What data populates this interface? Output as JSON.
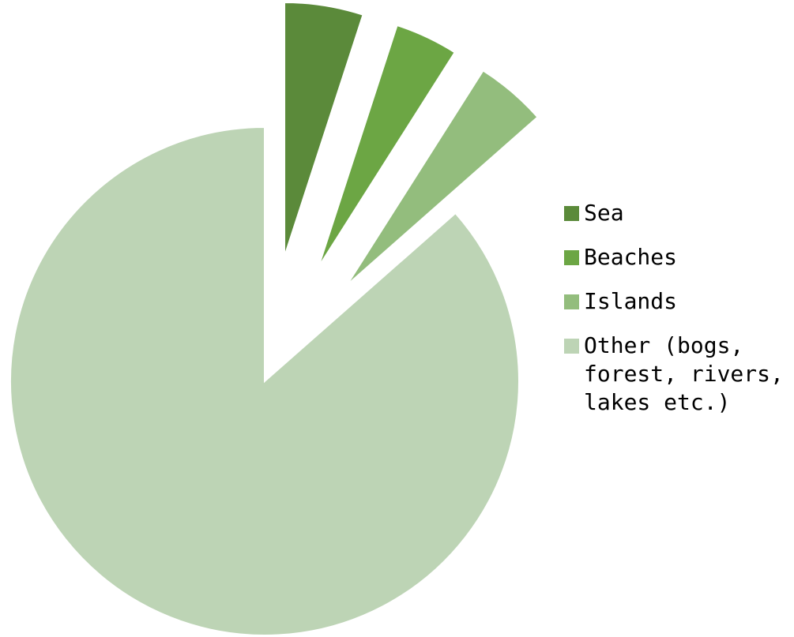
{
  "chart_data": {
    "type": "pie",
    "title": "",
    "slices": [
      {
        "label": "Sea",
        "value": 5,
        "color": "#5b8a3a",
        "exploded": true
      },
      {
        "label": "Beaches",
        "value": 4,
        "color": "#6ca644",
        "exploded": true
      },
      {
        "label": "Islands",
        "value": 4.5,
        "color": "#93bd7d",
        "exploded": true
      },
      {
        "label": "Other (bogs, forest, rivers, lakes etc.)",
        "value": 86.5,
        "color": "#bdd4b5",
        "exploded": false
      }
    ],
    "legend_position": "right"
  }
}
